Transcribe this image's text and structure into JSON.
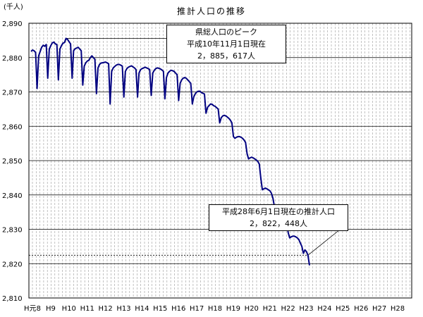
{
  "chart_data": {
    "type": "line",
    "title": "推計人口の推移",
    "ylabel": "(千人)",
    "xlabel": "",
    "ylim": [
      2810,
      2890
    ],
    "yticks": [
      "2,810",
      "2,820",
      "2,830",
      "2,840",
      "2,850",
      "2,860",
      "2,870",
      "2,880",
      "2,890"
    ],
    "xticks": [
      "H元8",
      "H9",
      "H10",
      "H11",
      "H12",
      "H13",
      "H14",
      "H15",
      "H16",
      "H17",
      "H18",
      "H19",
      "H20",
      "H21",
      "H22",
      "H23",
      "H24",
      "H25",
      "H26",
      "H27",
      "H28"
    ],
    "grid": "vertical-dashed, horizontal-solid",
    "line_color": "#000080",
    "series": [
      {
        "values": [
          2881.8,
          2882.2,
          2882.0,
          2881.5,
          2871.0,
          2880.5,
          2881.8,
          2883.0,
          2883.6,
          2883.3,
          2883.8,
          2874.0,
          2882.5,
          2883.5,
          2884.3,
          2884.5,
          2884.0,
          2883.8,
          2873.5,
          2882.5,
          2883.5,
          2884.2,
          2884.4,
          2885.6,
          2885.3,
          2884.6,
          2884.0,
          2874.0,
          2882.0,
          2882.6,
          2882.8,
          2883.0,
          2882.5,
          2882.0,
          2872.0,
          2877.5,
          2878.5,
          2879.0,
          2879.2,
          2880.0,
          2880.5,
          2880.0,
          2879.5,
          2869.5,
          2877.0,
          2878.0,
          2878.4,
          2878.5,
          2878.6,
          2878.7,
          2878.5,
          2878.2,
          2866.5,
          2876.0,
          2877.0,
          2877.4,
          2877.8,
          2878.0,
          2878.0,
          2877.8,
          2877.5,
          2868.5,
          2876.0,
          2876.8,
          2877.2,
          2877.4,
          2877.6,
          2877.3,
          2877.0,
          2876.5,
          2868.5,
          2875.5,
          2876.5,
          2876.8,
          2877.0,
          2877.2,
          2877.0,
          2876.8,
          2876.5,
          2869.0,
          2875.5,
          2876.3,
          2876.8,
          2877.0,
          2876.9,
          2876.7,
          2876.4,
          2876.0,
          2868.0,
          2874.2,
          2875.5,
          2876.0,
          2876.3,
          2876.2,
          2876.0,
          2875.5,
          2875.0,
          2867.5,
          2872.5,
          2873.5,
          2874.0,
          2874.2,
          2874.0,
          2873.5,
          2873.0,
          2872.5,
          2866.5,
          2868.6,
          2869.5,
          2870.0,
          2870.2,
          2870.2,
          2869.8,
          2869.6,
          2869.4,
          2863.8,
          2865.5,
          2866.0,
          2866.5,
          2866.4,
          2866.0,
          2865.8,
          2865.4,
          2865.0,
          2861.0,
          2862.5,
          2863.0,
          2863.2,
          2863.0,
          2862.7,
          2862.3,
          2861.8,
          2861.0,
          2857.0,
          2856.5,
          2856.8,
          2857.0,
          2857.0,
          2856.8,
          2856.5,
          2856.0,
          2855.3,
          2852.0,
          2850.5,
          2850.8,
          2851.0,
          2850.8,
          2850.5,
          2850.2,
          2849.8,
          2849.0,
          2845.0,
          2841.5,
          2841.8,
          2842.0,
          2841.8,
          2841.5,
          2841.2,
          2840.5,
          2839.0,
          2836.5,
          2834.5,
          2834.8,
          2835.0,
          2834.8,
          2834.5,
          2834.0,
          2833.5,
          2832.0,
          2829.0,
          2827.5,
          2827.8,
          2828.0,
          2828.0,
          2827.8,
          2827.5,
          2827.0,
          2826.0,
          2825.0,
          2823.0,
          2824.0,
          2823.5,
          2822.448,
          2819.5
        ]
      }
    ],
    "annotations": [
      {
        "lines": [
          "県総人口のピーク",
          "平成10年11月1日現在",
          "2，885，617人"
        ],
        "value": 2885.617
      },
      {
        "lines": [
          "平成28年6月1日現在の推計人口",
          "2，822，448人"
        ],
        "value": 2822.448
      }
    ]
  }
}
